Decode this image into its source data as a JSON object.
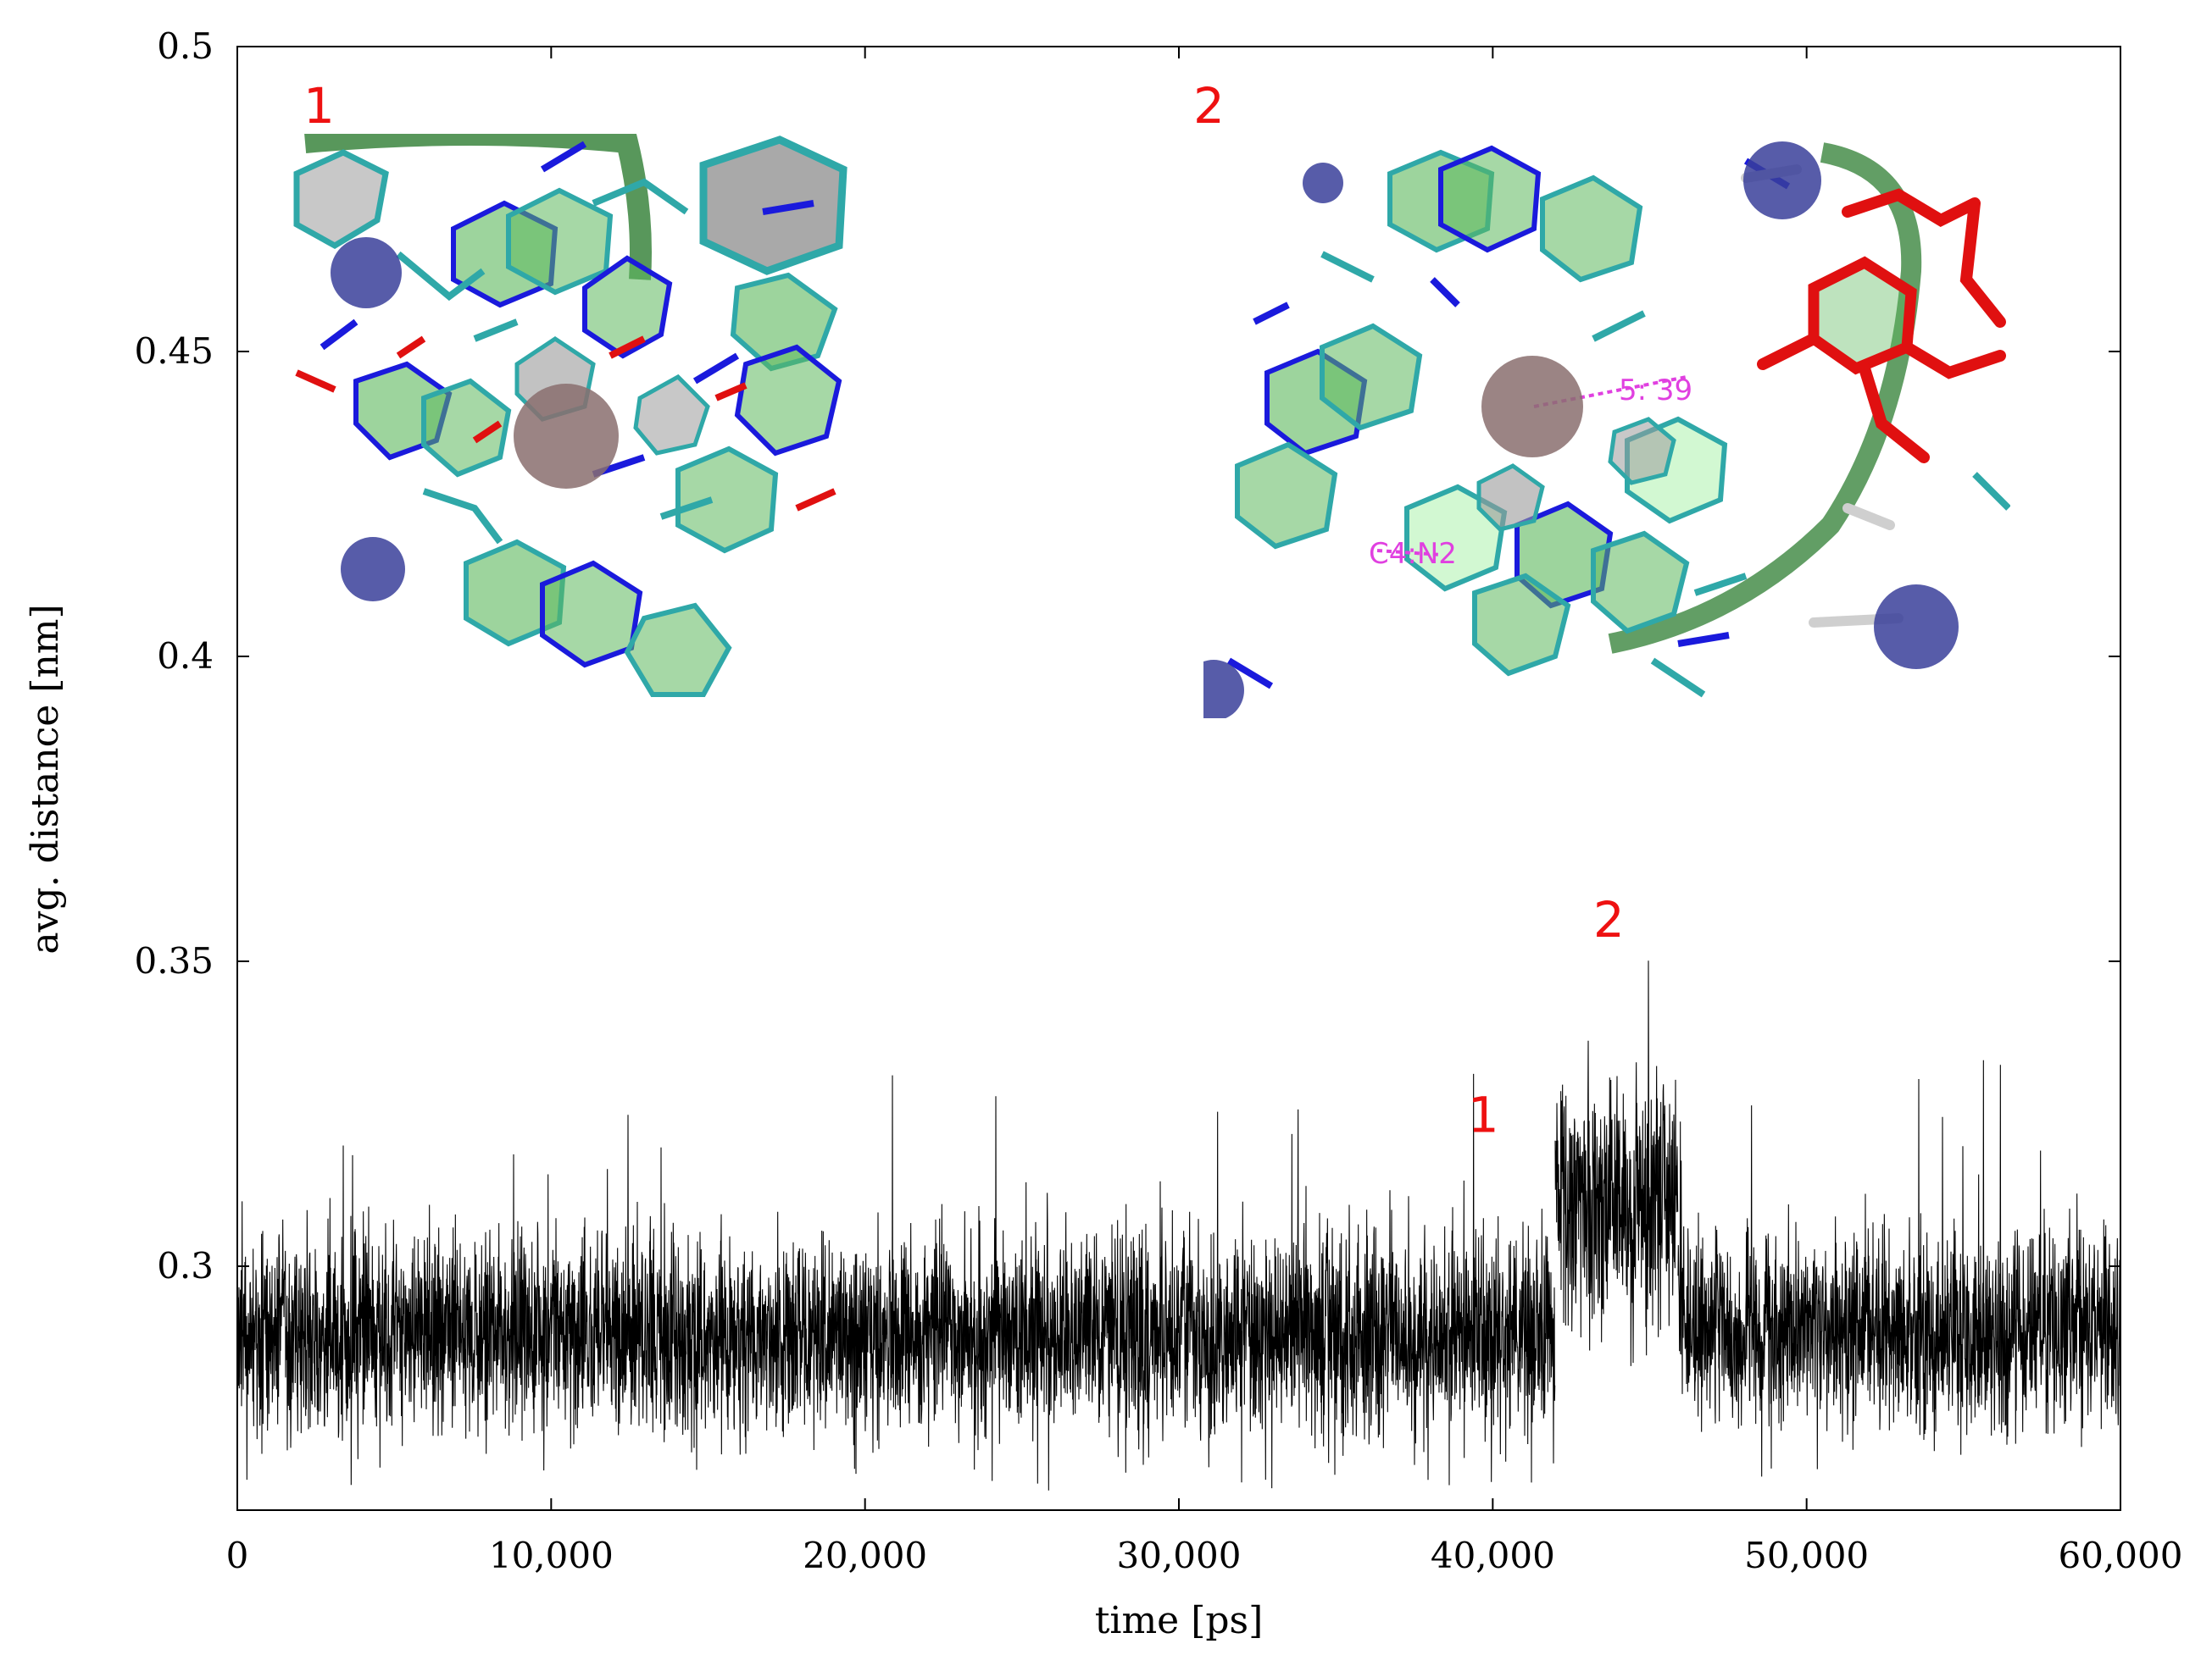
{
  "chart_data": {
    "type": "line",
    "title": "",
    "xlabel": "time [ps]",
    "ylabel": "avg. distance [nm]",
    "xlim": [
      0,
      60000
    ],
    "ylim": [
      0.26,
      0.5
    ],
    "x_ticks": [
      "0",
      "10,000",
      "20,000",
      "30,000",
      "40,000",
      "50,000",
      "60,000"
    ],
    "x_tick_values": [
      0,
      10000,
      20000,
      30000,
      40000,
      50000,
      60000
    ],
    "y_ticks": [
      "0.3",
      "0.35",
      "0.4",
      "0.45",
      "0.5"
    ],
    "y_tick_values": [
      0.3,
      0.35,
      0.4,
      0.45,
      0.5
    ],
    "grid": false,
    "legend": "none",
    "series": [
      {
        "color": "#000000",
        "segments": [
          {
            "x_start": 0,
            "x_end": 42000,
            "mean": 0.289,
            "spread": 0.008,
            "max_spike": 0.332
          },
          {
            "x_start": 42000,
            "x_end": 45900,
            "mean": 0.311,
            "spread": 0.01,
            "max_spike": 0.352
          },
          {
            "x_start": 45900,
            "x_end": 60000,
            "mean": 0.29,
            "spread": 0.008,
            "max_spike": 0.34
          }
        ]
      }
    ],
    "annotations": [
      {
        "text": "1",
        "x": 39700,
        "y": 0.322
      },
      {
        "text": "2",
        "x": 43700,
        "y": 0.354
      }
    ],
    "insets": [
      {
        "label": "1"
      },
      {
        "label": "2",
        "distance_labels": [
          "5: 39",
          "C4:N2"
        ]
      }
    ]
  },
  "colors": {
    "line": "#000000",
    "annotation": "#ee1111",
    "ring": "#5cb85c",
    "bond_cyan": "#2fa8a8",
    "bond_blue": "#1a1adc",
    "bond_red": "#e01010",
    "ion": "#3a3f9a",
    "metal": "#8a6e6e",
    "distance_label": "#e040e0"
  }
}
